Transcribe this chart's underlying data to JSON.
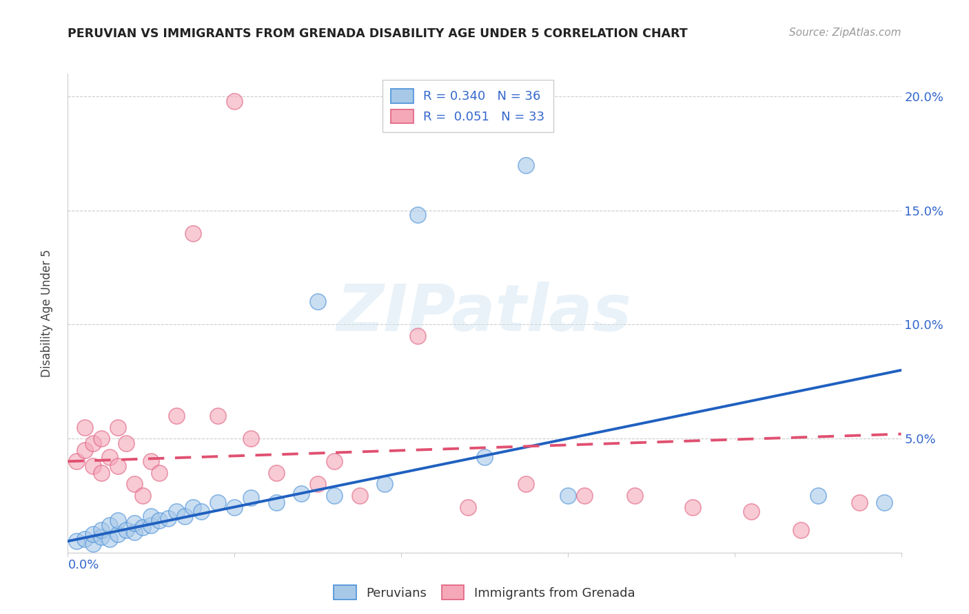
{
  "title": "PERUVIAN VS IMMIGRANTS FROM GRENADA DISABILITY AGE UNDER 5 CORRELATION CHART",
  "source": "Source: ZipAtlas.com",
  "ylabel": "Disability Age Under 5",
  "xlim": [
    0.0,
    0.1
  ],
  "ylim": [
    0.0,
    0.21
  ],
  "yticks": [
    0.0,
    0.05,
    0.1,
    0.15,
    0.2
  ],
  "ytick_labels": [
    "",
    "5.0%",
    "10.0%",
    "15.0%",
    "20.0%"
  ],
  "legend_r_blue": "R = 0.340",
  "legend_n_blue": "N = 36",
  "legend_r_pink": "R =  0.051",
  "legend_n_pink": "N = 33",
  "blue_color": "#a8c8e8",
  "pink_color": "#f4a8b8",
  "blue_edge_color": "#4a90d9",
  "pink_edge_color": "#e06080",
  "blue_line_color": "#2060c0",
  "pink_line_color": "#e05070",
  "label_blue": "Peruvians",
  "label_pink": "Immigrants from Grenada",
  "watermark": "ZIPatlas",
  "blue_scatter_x": [
    0.001,
    0.002,
    0.003,
    0.003,
    0.004,
    0.004,
    0.005,
    0.005,
    0.006,
    0.006,
    0.007,
    0.008,
    0.008,
    0.009,
    0.01,
    0.01,
    0.011,
    0.012,
    0.013,
    0.014,
    0.015,
    0.016,
    0.018,
    0.02,
    0.022,
    0.025,
    0.028,
    0.03,
    0.032,
    0.038,
    0.042,
    0.05,
    0.055,
    0.06,
    0.09,
    0.098
  ],
  "blue_scatter_y": [
    0.005,
    0.006,
    0.004,
    0.008,
    0.007,
    0.01,
    0.006,
    0.012,
    0.008,
    0.014,
    0.01,
    0.009,
    0.013,
    0.011,
    0.012,
    0.016,
    0.014,
    0.015,
    0.018,
    0.016,
    0.02,
    0.018,
    0.022,
    0.02,
    0.024,
    0.022,
    0.026,
    0.11,
    0.025,
    0.03,
    0.148,
    0.042,
    0.17,
    0.025,
    0.025,
    0.022
  ],
  "pink_scatter_x": [
    0.001,
    0.002,
    0.002,
    0.003,
    0.003,
    0.004,
    0.004,
    0.005,
    0.006,
    0.006,
    0.007,
    0.008,
    0.009,
    0.01,
    0.011,
    0.013,
    0.015,
    0.018,
    0.02,
    0.022,
    0.025,
    0.03,
    0.032,
    0.035,
    0.042,
    0.048,
    0.055,
    0.062,
    0.068,
    0.075,
    0.082,
    0.088,
    0.095
  ],
  "pink_scatter_y": [
    0.04,
    0.045,
    0.055,
    0.038,
    0.048,
    0.035,
    0.05,
    0.042,
    0.055,
    0.038,
    0.048,
    0.03,
    0.025,
    0.04,
    0.035,
    0.06,
    0.14,
    0.06,
    0.198,
    0.05,
    0.035,
    0.03,
    0.04,
    0.025,
    0.095,
    0.02,
    0.03,
    0.025,
    0.025,
    0.02,
    0.018,
    0.01,
    0.022
  ],
  "blue_trend_x": [
    0.0,
    0.1
  ],
  "blue_trend_y": [
    0.005,
    0.08
  ],
  "pink_trend_x": [
    0.0,
    0.1
  ],
  "pink_trend_y": [
    0.04,
    0.052
  ]
}
